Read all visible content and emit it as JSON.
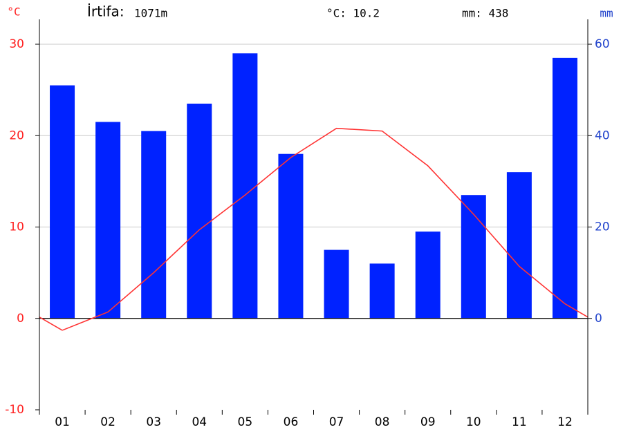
{
  "chart_data": {
    "type": "bar",
    "subtype": "climograph",
    "altitude_label": "İrtifa:",
    "altitude": "1071m",
    "temp_mean": "°C: 10.2",
    "precip_total": "mm: 438",
    "y_unit": "°C",
    "y2_unit": "mm",
    "categories": [
      "01",
      "02",
      "03",
      "04",
      "05",
      "06",
      "07",
      "08",
      "09",
      "10",
      "11",
      "12"
    ],
    "series": [
      {
        "name": "mm",
        "color": "#0022ff",
        "axis": "y2",
        "type": "bar",
        "values": [
          51,
          43,
          41,
          47,
          58,
          36,
          15,
          12,
          19,
          27,
          32,
          57
        ]
      },
      {
        "name": "°C",
        "color": "#ff3333",
        "axis": "y",
        "type": "line",
        "values": [
          -1.3,
          0.7,
          5,
          9.7,
          13.5,
          17.6,
          20.8,
          20.5,
          16.7,
          11.4,
          5.7,
          1.6
        ]
      }
    ],
    "ylim": [
      -10,
      30
    ],
    "yticks": [
      -10,
      0,
      10,
      20,
      30
    ],
    "y_color": "#ff2020",
    "y2lim": [
      -20,
      60
    ],
    "y2ticks": [
      0,
      20,
      40,
      60
    ],
    "y2_color": "#2244cc",
    "grid": true
  }
}
